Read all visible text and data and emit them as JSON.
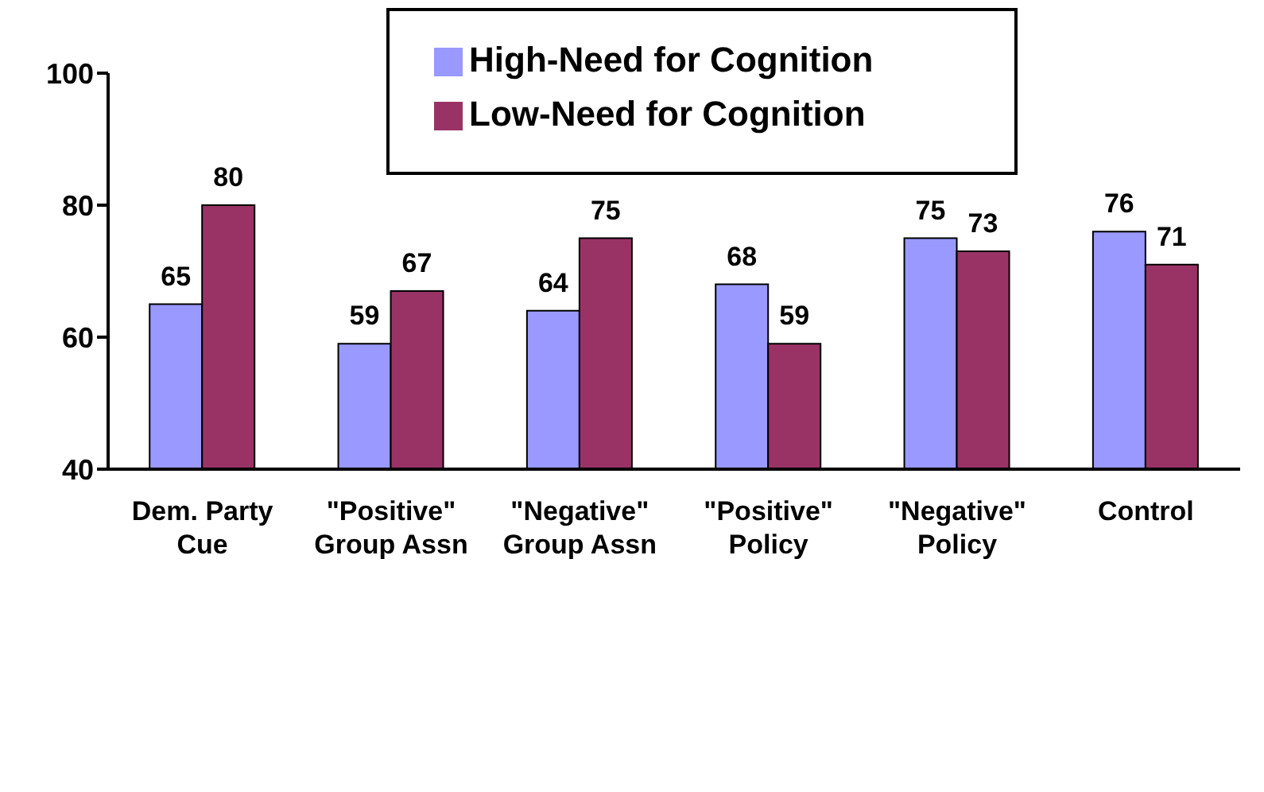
{
  "chart_data": {
    "type": "bar",
    "categories": [
      "Dem. Party Cue",
      "\"Positive\" Group Assn",
      "\"Negative\" Group Assn",
      "\"Positive\" Policy",
      "\"Negative\" Policy",
      "Control"
    ],
    "series": [
      {
        "name": "High-Need for Cognition",
        "color": "#9999ff",
        "values": [
          65,
          59,
          64,
          68,
          75,
          76
        ]
      },
      {
        "name": "Low-Need for Cognition",
        "color": "#993366",
        "values": [
          80,
          67,
          75,
          59,
          73,
          71
        ]
      }
    ],
    "ylim": [
      40,
      100
    ],
    "yticks": [
      40,
      60,
      80,
      100
    ],
    "grid": false,
    "legend": "top",
    "data_labels": true
  }
}
